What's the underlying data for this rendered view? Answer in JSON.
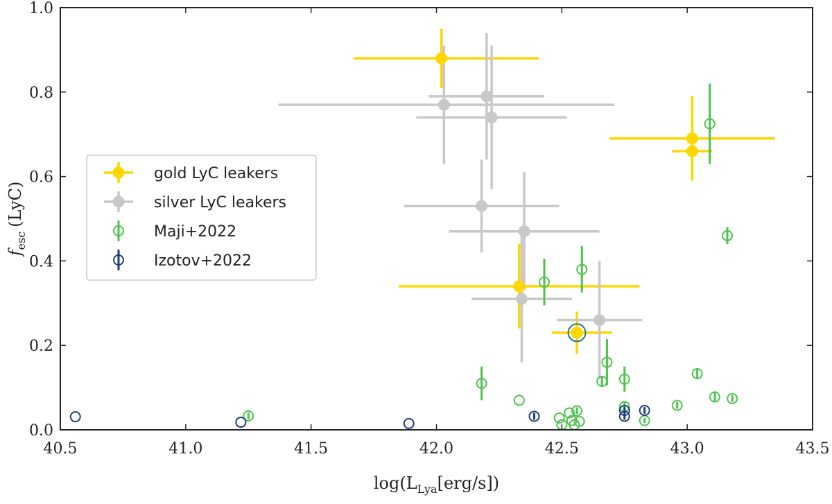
{
  "chart_data": {
    "type": "scatter",
    "title": "",
    "xlabel": "log(L_Lya[erg/s])",
    "ylabel": "f_esc (LyC)",
    "xlabel_main": "log(L",
    "xlabel_sub": "Lya",
    "xlabel_rest": "[erg/s])",
    "ylabel_main": "f",
    "ylabel_sub": "esc",
    "ylabel_rest": "(LyC)",
    "xlim": [
      40.5,
      43.5
    ],
    "ylim": [
      0.0,
      1.0
    ],
    "xticks": [
      40.5,
      41.0,
      41.5,
      42.0,
      42.5,
      43.0,
      43.5
    ],
    "xtick_labels": [
      "40.5",
      "41.0",
      "41.5",
      "42.0",
      "42.5",
      "43.0",
      "43.5"
    ],
    "yticks": [
      0.0,
      0.2,
      0.4,
      0.6,
      0.8,
      1.0
    ],
    "ytick_labels": [
      "0.0",
      "0.2",
      "0.4",
      "0.6",
      "0.8",
      "1.0"
    ],
    "grid": false,
    "legend_position": "center-left",
    "series": [
      {
        "name": "gold LyC leakers",
        "color": "#FFD700",
        "marker": "filled-circle",
        "points": [
          {
            "x": 42.02,
            "y": 0.88,
            "xerr": [
              0.35,
              0.39
            ],
            "yerr": [
              0.07,
              0.07
            ]
          },
          {
            "x": 43.02,
            "y": 0.69,
            "xerr": [
              0.33,
              0.33
            ],
            "yerr": [
              0.08,
              0.1
            ]
          },
          {
            "x": 43.02,
            "y": 0.66,
            "xerr": [
              0.08,
              0.08
            ],
            "yerr": [
              0.07,
              0.07
            ]
          },
          {
            "x": 42.33,
            "y": 0.34,
            "xerr": [
              0.48,
              0.48
            ],
            "yerr": [
              0.1,
              0.1
            ]
          },
          {
            "x": 42.56,
            "y": 0.23,
            "xerr": [
              0.1,
              0.14
            ],
            "yerr": [
              0.05,
              0.05
            ]
          }
        ]
      },
      {
        "name": "silver LyC leakers",
        "color": "#C8C8C8",
        "marker": "filled-circle",
        "points": [
          {
            "x": 42.2,
            "y": 0.79,
            "xerr": [
              0.23,
              0.23
            ],
            "yerr": [
              0.15,
              0.15
            ]
          },
          {
            "x": 42.03,
            "y": 0.77,
            "xerr": [
              0.66,
              0.68
            ],
            "yerr": [
              0.14,
              0.14
            ]
          },
          {
            "x": 42.22,
            "y": 0.74,
            "xerr": [
              0.3,
              0.3
            ],
            "yerr": [
              0.17,
              0.17
            ]
          },
          {
            "x": 42.18,
            "y": 0.53,
            "xerr": [
              0.31,
              0.31
            ],
            "yerr": [
              0.11,
              0.11
            ]
          },
          {
            "x": 42.35,
            "y": 0.47,
            "xerr": [
              0.3,
              0.3
            ],
            "yerr": [
              0.14,
              0.14
            ]
          },
          {
            "x": 42.34,
            "y": 0.31,
            "xerr": [
              0.2,
              0.2
            ],
            "yerr": [
              0.15,
              0.15
            ]
          },
          {
            "x": 42.65,
            "y": 0.26,
            "xerr": [
              0.17,
              0.17
            ],
            "yerr": [
              0.14,
              0.14
            ]
          }
        ]
      },
      {
        "name": "Maji+2022",
        "color": "#4CC34C",
        "marker": "open-circle",
        "points": [
          {
            "x": 43.09,
            "y": 0.725,
            "yerr": [
              0.095,
              0.095
            ]
          },
          {
            "x": 43.16,
            "y": 0.46,
            "yerr": [
              0.02,
              0.02
            ]
          },
          {
            "x": 42.58,
            "y": 0.38,
            "yerr": [
              0.055,
              0.055
            ]
          },
          {
            "x": 42.43,
            "y": 0.35,
            "yerr": [
              0.055,
              0.055
            ]
          },
          {
            "x": 42.68,
            "y": 0.16,
            "yerr": [
              0.055,
              0.055
            ]
          },
          {
            "x": 42.18,
            "y": 0.11,
            "yerr": [
              0.04,
              0.04
            ]
          },
          {
            "x": 42.66,
            "y": 0.115,
            "yerr": [
              0.01,
              0.01
            ]
          },
          {
            "x": 42.75,
            "y": 0.12,
            "yerr": [
              0.03,
              0.03
            ]
          },
          {
            "x": 43.04,
            "y": 0.133,
            "yerr": [
              0.012,
              0.012
            ]
          },
          {
            "x": 42.33,
            "y": 0.07,
            "yerr": [
              0.0,
              0.0
            ]
          },
          {
            "x": 43.11,
            "y": 0.078,
            "yerr": [
              0.012,
              0.012
            ]
          },
          {
            "x": 43.18,
            "y": 0.074,
            "yerr": [
              0.008,
              0.008
            ]
          },
          {
            "x": 42.96,
            "y": 0.058,
            "yerr": [
              0.008,
              0.008
            ]
          },
          {
            "x": 42.75,
            "y": 0.055,
            "yerr": [
              0.01,
              0.01
            ]
          },
          {
            "x": 42.53,
            "y": 0.04,
            "yerr": [
              0.0,
              0.0
            ]
          },
          {
            "x": 42.56,
            "y": 0.045,
            "yerr": [
              0.008,
              0.008
            ]
          },
          {
            "x": 42.49,
            "y": 0.028,
            "yerr": [
              0.0,
              0.0
            ]
          },
          {
            "x": 42.54,
            "y": 0.022,
            "yerr": [
              0.0,
              0.0
            ]
          },
          {
            "x": 42.57,
            "y": 0.02,
            "yerr": [
              0.0,
              0.0
            ]
          },
          {
            "x": 42.5,
            "y": 0.012,
            "yerr": [
              0.0,
              0.0
            ]
          },
          {
            "x": 42.55,
            "y": 0.012,
            "yerr": [
              0.0,
              0.0
            ]
          },
          {
            "x": 42.83,
            "y": 0.022,
            "yerr": [
              0.006,
              0.006
            ]
          },
          {
            "x": 41.25,
            "y": 0.033,
            "yerr": [
              0.008,
              0.008
            ]
          }
        ]
      },
      {
        "name": "Izotov+2022",
        "color": "#1F3A7A",
        "marker": "open-circle",
        "points": [
          {
            "x": 40.56,
            "y": 0.031,
            "yerr": [
              0.0,
              0.0
            ]
          },
          {
            "x": 41.22,
            "y": 0.018,
            "yerr": [
              0.0,
              0.0
            ]
          },
          {
            "x": 41.89,
            "y": 0.015,
            "yerr": [
              0.0,
              0.0
            ]
          },
          {
            "x": 42.39,
            "y": 0.032,
            "yerr": [
              0.008,
              0.008
            ]
          },
          {
            "x": 42.75,
            "y": 0.032,
            "yerr": [
              0.008,
              0.008
            ]
          },
          {
            "x": 42.75,
            "y": 0.046,
            "yerr": [
              0.008,
              0.008
            ]
          },
          {
            "x": 42.83,
            "y": 0.046,
            "yerr": [
              0.008,
              0.008
            ]
          }
        ]
      }
    ],
    "highlight": {
      "x": 42.56,
      "y": 0.23,
      "color": "#1F7A7A"
    }
  }
}
